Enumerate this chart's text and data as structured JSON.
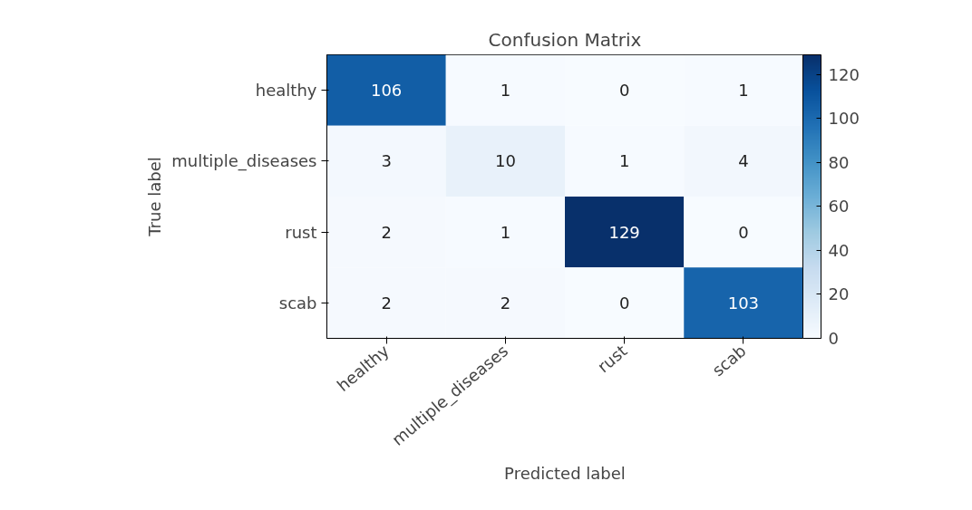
{
  "chart_data": {
    "type": "heatmap",
    "title": "Confusion Matrix",
    "xlabel": "Predicted label",
    "ylabel": "True label",
    "categories": [
      "healthy",
      "multiple_diseases",
      "rust",
      "scab"
    ],
    "y_categories": [
      "healthy",
      "multiple_diseases",
      "rust",
      "scab"
    ],
    "cells": [
      [
        106,
        1,
        0,
        1
      ],
      [
        3,
        10,
        1,
        4
      ],
      [
        2,
        1,
        129,
        0
      ],
      [
        2,
        2,
        0,
        103
      ]
    ],
    "clim": [
      0,
      129
    ],
    "cticks": [
      0,
      20,
      40,
      60,
      80,
      100,
      120
    ],
    "data_labels": true,
    "grid": false
  }
}
